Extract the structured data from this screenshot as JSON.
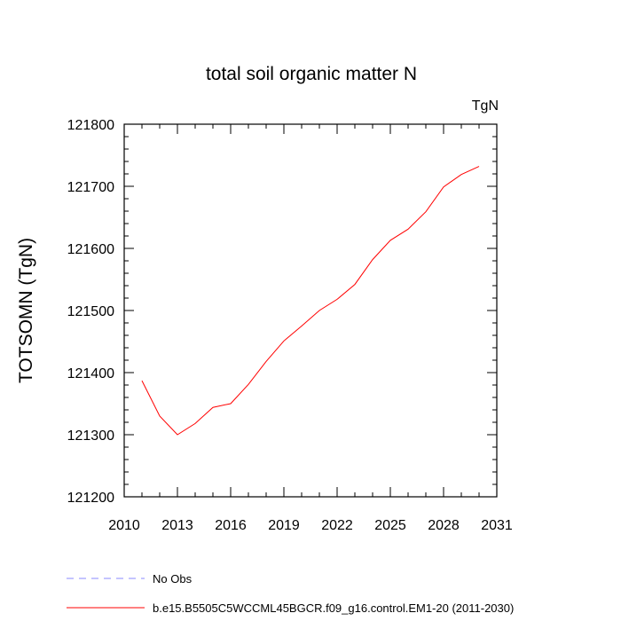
{
  "chart_data": {
    "type": "line",
    "title": "total soil organic matter N",
    "units_label": "TgN",
    "xlabel": "",
    "ylabel": "TOTSOMN  (TgN)",
    "xlim": [
      2010,
      2031
    ],
    "ylim": [
      121200,
      121800
    ],
    "x_ticks": [
      "2010",
      "2013",
      "2016",
      "2019",
      "2022",
      "2025",
      "2028",
      "2031"
    ],
    "y_ticks": [
      "121200",
      "121300",
      "121400",
      "121500",
      "121600",
      "121700",
      "121800"
    ],
    "grid": false,
    "series": [
      {
        "name": "b.e15.B5505C5WCCML45BGCR.f09_g16.control.EM1-20 (2011-2030)",
        "color": "#ff0000",
        "line_style": "solid",
        "x": [
          2011,
          2012,
          2013,
          2014,
          2015,
          2016,
          2017,
          2018,
          2019,
          2020,
          2021,
          2022,
          2023,
          2024,
          2025,
          2026,
          2027,
          2028,
          2029,
          2030
        ],
        "y": [
          121387,
          121330,
          121300,
          121318,
          121344,
          121350,
          121381,
          121418,
          121451,
          121475,
          121500,
          121518,
          121542,
          121582,
          121613,
          121631,
          121659,
          121699,
          121719,
          121732
        ]
      }
    ],
    "legend": {
      "placement": "bottom-left",
      "entries": [
        {
          "label": "No Obs",
          "color": "#8888ff",
          "line_style": "dashed"
        },
        {
          "label": "b.e15.B5505C5WCCML45BGCR.f09_g16.control.EM1-20 (2011-2030)",
          "color": "#ff0000",
          "line_style": "solid"
        }
      ]
    }
  }
}
